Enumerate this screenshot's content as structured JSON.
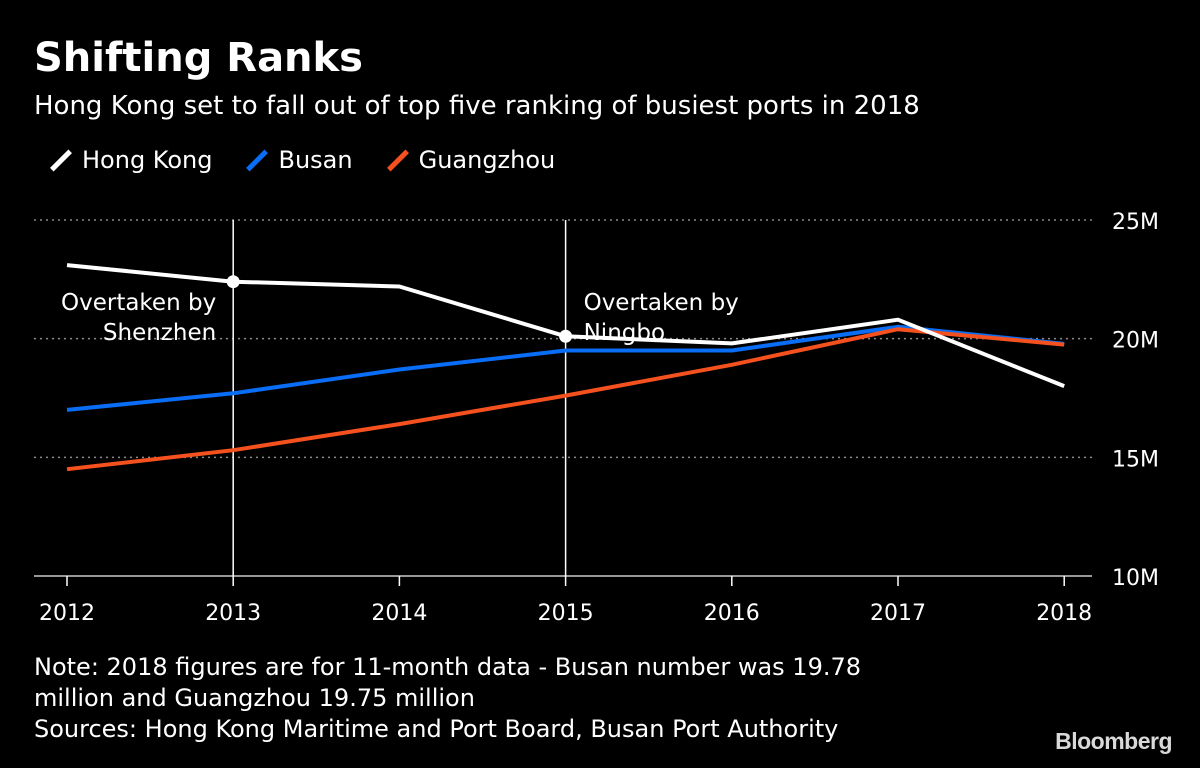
{
  "header": {
    "title": "Shifting Ranks",
    "subtitle": "Hong Kong set to fall out of top five ranking of busiest ports in 2018"
  },
  "legend": [
    {
      "label": "Hong Kong",
      "color": "#ffffff"
    },
    {
      "label": "Busan",
      "color": "#0a6df5"
    },
    {
      "label": "Guangzhou",
      "color": "#f4511e"
    }
  ],
  "chart_data": {
    "type": "line",
    "title": "Shifting Ranks",
    "subtitle": "Hong Kong set to fall out of top five ranking of busiest ports in 2018",
    "xlabel": "",
    "ylabel": "",
    "categories": [
      "2012",
      "2013",
      "2014",
      "2015",
      "2016",
      "2017",
      "2018"
    ],
    "series": [
      {
        "name": "Hong Kong",
        "color": "#ffffff",
        "values": [
          23.1,
          22.4,
          22.2,
          20.1,
          19.8,
          20.8,
          18.0
        ]
      },
      {
        "name": "Busan",
        "color": "#0a6df5",
        "values": [
          17.0,
          17.7,
          18.7,
          19.5,
          19.5,
          20.5,
          19.78
        ]
      },
      {
        "name": "Guangzhou",
        "color": "#f4511e",
        "values": [
          14.5,
          15.3,
          16.4,
          17.6,
          18.9,
          20.4,
          19.75
        ]
      }
    ],
    "ylim": [
      10,
      25
    ],
    "yticks": [
      {
        "value": 25,
        "label": "25M"
      },
      {
        "value": 20,
        "label": "20M"
      },
      {
        "value": 15,
        "label": "15M"
      },
      {
        "value": 10,
        "label": "10M"
      }
    ],
    "grid": true,
    "y_axis_side": "right",
    "annotations": [
      {
        "x": "2013",
        "series": "Hong Kong",
        "lines": [
          "Overtaken by",
          "Shenzhen"
        ],
        "align": "right"
      },
      {
        "x": "2015",
        "series": "Hong Kong",
        "lines": [
          "Overtaken by",
          "Ningbo"
        ],
        "align": "left"
      }
    ]
  },
  "footer": {
    "note_line1": "Note: 2018 figures are for 11-month data - Busan number was 19.78",
    "note_line2": "million and Guangzhou 19.75 million",
    "sources": "Sources: Hong Kong Maritime and Port Board, Busan Port Authority",
    "brand": "Bloomberg"
  }
}
